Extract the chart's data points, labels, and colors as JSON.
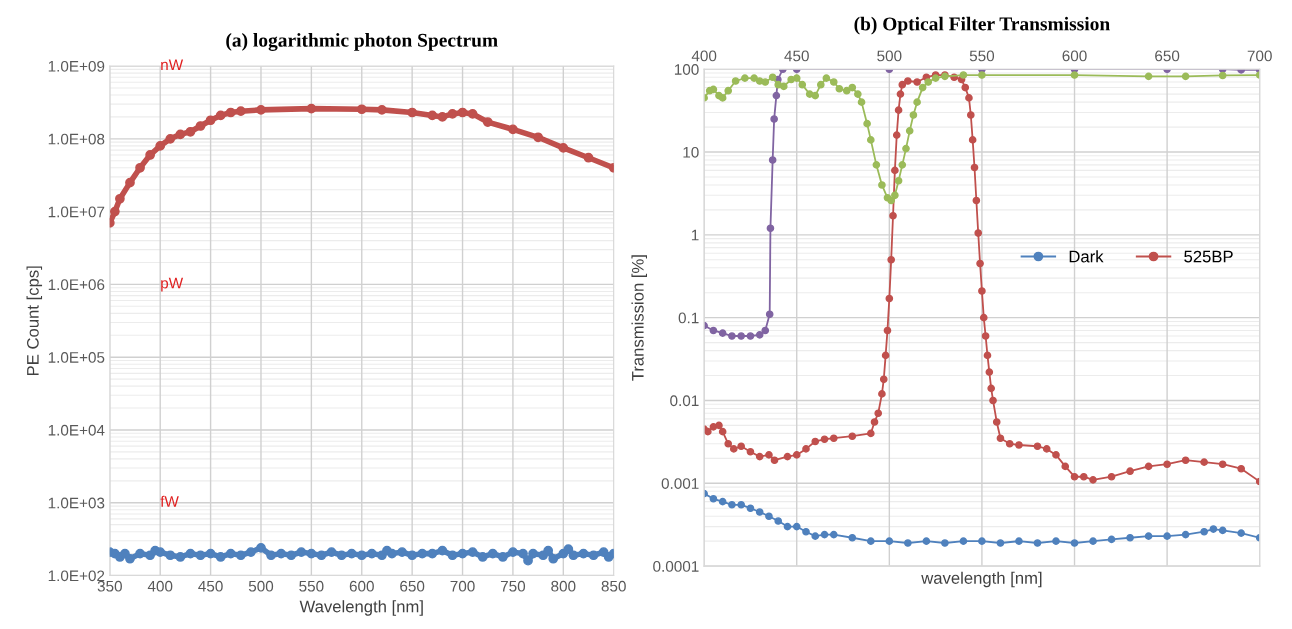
{
  "chart_data": [
    {
      "type": "line",
      "title": "(a) logarithmic photon Spectrum",
      "xlabel": "Wavelength [nm]",
      "ylabel": "PE Count [cps]",
      "log": "y",
      "grid": true,
      "marker": "circle",
      "legend": false,
      "xlim": [
        350,
        850
      ],
      "xticks": [
        350,
        400,
        450,
        500,
        550,
        600,
        650,
        700,
        750,
        800,
        850
      ],
      "ylim": [
        100,
        1000000000
      ],
      "yticks": [
        {
          "value": 100,
          "label": "1.0E+02"
        },
        {
          "value": 1000,
          "label": "1.0E+03"
        },
        {
          "value": 10000,
          "label": "1.0E+04"
        },
        {
          "value": 100000,
          "label": "1.0E+05"
        },
        {
          "value": 1000000,
          "label": "1.0E+06"
        },
        {
          "value": 10000000,
          "label": "1.0E+07"
        },
        {
          "value": 100000000,
          "label": "1.0E+08"
        },
        {
          "value": 1000000000,
          "label": "1.0E+09"
        }
      ],
      "annotations": [
        "nW",
        "pW",
        "fW"
      ],
      "series": [
        {
          "color": "#c0504d",
          "x": [
            350,
            355,
            360,
            370,
            380,
            390,
            400,
            410,
            420,
            430,
            440,
            450,
            460,
            470,
            480,
            500,
            550,
            600,
            620,
            650,
            670,
            680,
            690,
            700,
            710,
            725,
            750,
            775,
            800,
            825,
            850
          ],
          "values": [
            7000000,
            10000000,
            15000000,
            25000000,
            40000000,
            60000000,
            80000000,
            100000000,
            115000000,
            125000000,
            150000000,
            180000000,
            210000000,
            230000000,
            240000000,
            250000000,
            260000000,
            255000000,
            250000000,
            230000000,
            210000000,
            200000000,
            220000000,
            230000000,
            220000000,
            170000000,
            135000000,
            105000000,
            75000000,
            55000000,
            40000000
          ]
        },
        {
          "color": "#4f81bd",
          "x": [
            350,
            355,
            360,
            365,
            370,
            380,
            390,
            395,
            400,
            410,
            420,
            430,
            440,
            450,
            460,
            470,
            480,
            490,
            500,
            510,
            520,
            530,
            540,
            550,
            560,
            570,
            580,
            590,
            600,
            610,
            620,
            625,
            630,
            640,
            650,
            660,
            670,
            680,
            690,
            700,
            710,
            720,
            730,
            740,
            750,
            760,
            765,
            770,
            780,
            785,
            790,
            800,
            805,
            810,
            820,
            830,
            840,
            845,
            850
          ],
          "values": [
            210,
            200,
            180,
            200,
            170,
            200,
            190,
            220,
            210,
            190,
            180,
            200,
            190,
            200,
            180,
            200,
            190,
            210,
            240,
            190,
            200,
            190,
            210,
            200,
            190,
            210,
            190,
            200,
            190,
            200,
            190,
            220,
            200,
            210,
            190,
            200,
            200,
            220,
            190,
            200,
            210,
            180,
            200,
            180,
            210,
            200,
            160,
            200,
            190,
            220,
            170,
            200,
            230,
            190,
            200,
            190,
            210,
            180,
            200
          ]
        }
      ]
    },
    {
      "type": "line",
      "title": "(b) Optical Filter Transmission",
      "xlabel": "wavelength [nm]",
      "ylabel": "Transmission [%]",
      "log": "y",
      "grid": true,
      "marker": "circle",
      "legend": "right",
      "tick_labels": "y",
      "xlim": [
        400,
        700
      ],
      "xticks": [
        400,
        450,
        500,
        550,
        600,
        650,
        700
      ],
      "x2lim": [
        400,
        700
      ],
      "x2ticks": [
        400,
        450,
        500,
        550,
        600,
        650,
        700
      ],
      "ylim": [
        0.0001,
        100
      ],
      "yticks": [
        0.0001,
        0.001,
        0.01,
        0.1,
        1,
        10,
        100
      ],
      "series": [
        {
          "name": "Dark",
          "color": "#4f81bd",
          "x": [
            400,
            405,
            410,
            415,
            420,
            425,
            430,
            435,
            440,
            445,
            450,
            455,
            460,
            465,
            470,
            480,
            490,
            500,
            510,
            520,
            530,
            540,
            550,
            560,
            570,
            580,
            590,
            600,
            610,
            620,
            630,
            640,
            650,
            660,
            670,
            675,
            680,
            690,
            700
          ],
          "values": [
            0.00075,
            0.00065,
            0.0006,
            0.00055,
            0.00055,
            0.0005,
            0.00045,
            0.0004,
            0.00035,
            0.0003,
            0.0003,
            0.00026,
            0.00023,
            0.00024,
            0.00024,
            0.00022,
            0.0002,
            0.0002,
            0.00019,
            0.0002,
            0.00019,
            0.0002,
            0.0002,
            0.00019,
            0.0002,
            0.00019,
            0.0002,
            0.00019,
            0.0002,
            0.00021,
            0.00022,
            0.00023,
            0.00023,
            0.00024,
            0.00026,
            0.00028,
            0.00027,
            0.00025,
            0.00022
          ]
        },
        {
          "name": "525BP",
          "color": "#c0504d",
          "x": [
            400,
            402,
            405,
            408,
            410,
            413,
            416,
            420,
            425,
            430,
            435,
            438,
            445,
            450,
            455,
            460,
            465,
            470,
            480,
            490,
            492,
            494,
            496,
            497,
            498,
            499,
            500,
            501,
            502,
            503,
            504,
            505,
            506,
            507,
            510,
            515,
            520,
            525,
            530,
            535,
            539,
            541,
            543,
            544,
            545,
            546,
            547,
            548,
            549,
            550,
            551,
            552,
            553,
            554,
            555,
            556,
            558,
            560,
            565,
            570,
            580,
            585,
            590,
            595,
            600,
            605,
            610,
            620,
            630,
            640,
            650,
            660,
            670,
            680,
            690,
            700
          ],
          "values": [
            0.0045,
            0.0042,
            0.0048,
            0.005,
            0.0042,
            0.003,
            0.0026,
            0.0028,
            0.0024,
            0.0021,
            0.0022,
            0.0019,
            0.0021,
            0.0022,
            0.0026,
            0.0032,
            0.0034,
            0.0035,
            0.0037,
            0.004,
            0.0055,
            0.007,
            0.012,
            0.018,
            0.035,
            0.07,
            0.17,
            0.5,
            1.7,
            6,
            16,
            32,
            50,
            65,
            72,
            70,
            80,
            85,
            85,
            80,
            75,
            60,
            45,
            28,
            14,
            6.5,
            2.6,
            1.05,
            0.45,
            0.21,
            0.1,
            0.06,
            0.035,
            0.022,
            0.014,
            0.01,
            0.0055,
            0.0035,
            0.003,
            0.0029,
            0.0028,
            0.0026,
            0.0022,
            0.0016,
            0.0012,
            0.0012,
            0.0011,
            0.0012,
            0.0014,
            0.0016,
            0.0017,
            0.0019,
            0.0018,
            0.0017,
            0.0015,
            0.00105
          ]
        },
        {
          "color": "#8064a2",
          "x": [
            400,
            405,
            410,
            415,
            420,
            425,
            430,
            433,
            435.4,
            435.8,
            437,
            437.8,
            439,
            439.8,
            442.5,
            450,
            500,
            550,
            600,
            650,
            680,
            690,
            700
          ],
          "values": [
            0.08,
            0.07,
            0.065,
            0.06,
            0.06,
            0.06,
            0.062,
            0.07,
            0.11,
            1.2,
            8,
            25,
            48,
            75,
            100,
            100,
            100,
            100,
            100,
            100,
            100,
            98,
            98
          ]
        },
        {
          "color": "#9bbb59",
          "x": [
            400,
            403,
            405,
            408,
            410,
            413,
            417,
            422,
            427,
            430,
            433,
            437,
            440,
            443,
            447,
            450,
            453,
            457,
            460,
            463,
            466,
            470,
            473,
            477,
            480,
            483,
            485,
            488,
            490,
            493,
            496,
            499,
            501,
            503,
            505,
            507,
            509,
            511,
            513,
            515,
            518,
            521,
            525,
            530,
            540,
            550,
            600,
            640,
            660,
            680,
            700
          ],
          "values": [
            45,
            55,
            57,
            48,
            45,
            55,
            72,
            78,
            78,
            72,
            70,
            80,
            65,
            62,
            75,
            78,
            65,
            50,
            48,
            65,
            78,
            70,
            58,
            55,
            60,
            50,
            40,
            22,
            14,
            7,
            4,
            2.8,
            2.6,
            3,
            4.5,
            7,
            11,
            18,
            28,
            40,
            60,
            70,
            78,
            82,
            85,
            85,
            85,
            82,
            82,
            84,
            85
          ]
        }
      ]
    }
  ]
}
